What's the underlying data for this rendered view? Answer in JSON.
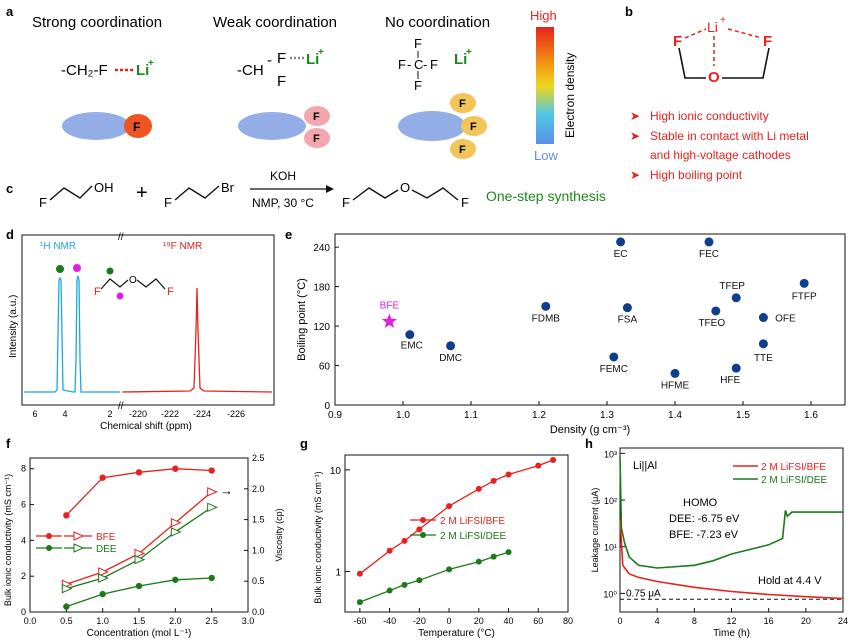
{
  "panel_letters": [
    "a",
    "b",
    "c",
    "d",
    "e",
    "f",
    "g",
    "h"
  ],
  "panel_a": {
    "headings": [
      "Strong coordination",
      "Weak coordination",
      "No coordination"
    ],
    "formula_strong": "-CH₂-F",
    "formula_weak_ch": "-CH",
    "atom_f": "F",
    "atom_c": "C",
    "li": "Li",
    "li_charge": "+",
    "bond_dash": "-",
    "colorbar_high": "High",
    "colorbar_low": "Low",
    "colorbar_label": "Electron density",
    "colors": {
      "strong_f": "#ee5522",
      "weak_f": "#f4a6ae",
      "no_f": "#f2c55a",
      "blob": "#93aee6",
      "red": "#e8211e",
      "green": "#1b8a1b"
    }
  },
  "panel_b": {
    "li": "Li",
    "li_charge": "+",
    "f": "F",
    "o": "O",
    "bullet": "➤",
    "bullets": [
      "High ionic conductivity",
      "Stable in contact with Li metal",
      "and high-voltage cathodes",
      "High boiling point"
    ]
  },
  "panel_c": {
    "f": "F",
    "oh": "OH",
    "br": "Br",
    "o": "O",
    "plus": "+",
    "reagent": "KOH",
    "conditions": "NMP, 30 °C",
    "note": "One-step synthesis"
  },
  "panel_d": {
    "h_nmr": "¹H NMR",
    "f_nmr": "¹⁹F NMR",
    "ylabel": "Intensity (a.u.)",
    "xlabel": "Chemical shift (ppm)",
    "xticks": [
      "6",
      "4",
      "2",
      "-220",
      "-222",
      "-224",
      "-226"
    ],
    "axis_break": "//",
    "f": "F",
    "o": "O",
    "colors": {
      "h": "#1aa7e6",
      "f": "#e8211e",
      "dot1": "#1a7a1a",
      "dot2": "#e020e0"
    }
  },
  "chart_data": [
    {
      "type": "scatter",
      "panel": "e",
      "xlabel": "Density (g cm⁻³)",
      "ylabel": "Boiling point (°C)",
      "xlim": [
        0.9,
        1.65
      ],
      "ylim": [
        0,
        260
      ],
      "xticks": [
        "0.9",
        "1.0",
        "1.1",
        "1.2",
        "1.3",
        "1.4",
        "1.5",
        "1.6"
      ],
      "yticks": [
        "0",
        "60",
        "120",
        "180",
        "240"
      ],
      "points": [
        {
          "label": "BFE",
          "x": 0.98,
          "y": 127,
          "marker": "star"
        },
        {
          "label": "EMC",
          "x": 1.01,
          "y": 107
        },
        {
          "label": "DMC",
          "x": 1.07,
          "y": 90
        },
        {
          "label": "FDMB",
          "x": 1.21,
          "y": 150
        },
        {
          "label": "EC",
          "x": 1.32,
          "y": 248
        },
        {
          "label": "FSA",
          "x": 1.33,
          "y": 148
        },
        {
          "label": "FEMC",
          "x": 1.31,
          "y": 73
        },
        {
          "label": "HFME",
          "x": 1.4,
          "y": 48
        },
        {
          "label": "FEC",
          "x": 1.45,
          "y": 248
        },
        {
          "label": "TFEO",
          "x": 1.46,
          "y": 143
        },
        {
          "label": "TFEP",
          "x": 1.49,
          "y": 163
        },
        {
          "label": "HFE",
          "x": 1.49,
          "y": 56
        },
        {
          "label": "OFE",
          "x": 1.53,
          "y": 133
        },
        {
          "label": "TTE",
          "x": 1.53,
          "y": 93
        },
        {
          "label": "FTFP",
          "x": 1.59,
          "y": 185
        }
      ]
    },
    {
      "type": "line",
      "panel": "f",
      "xlabel": "Concentration (mol L⁻¹)",
      "ylabel": "Bulk ionic conductivity (mS cm⁻¹)",
      "y2label": "Viscosity (cp)",
      "xlim": [
        0,
        3
      ],
      "ylim": [
        0,
        8.6
      ],
      "y2lim": [
        0,
        2.5
      ],
      "xticks": [
        "0.0",
        "0.5",
        "1.0",
        "1.5",
        "2.0",
        "2.5",
        "3.0"
      ],
      "yticks": [
        "0",
        "2",
        "4",
        "6",
        "8"
      ],
      "y2ticks": [
        "0.0",
        "0.5",
        "1.0",
        "1.5",
        "2.0",
        "2.5"
      ],
      "x": [
        0.5,
        1.0,
        1.5,
        2.0,
        2.5
      ],
      "series": [
        {
          "name": "BFE",
          "axis": "left",
          "values": [
            5.4,
            7.5,
            7.8,
            8.0,
            7.9
          ],
          "marker": "filled"
        },
        {
          "name": "DEE",
          "axis": "left",
          "values": [
            0.3,
            1.0,
            1.45,
            1.8,
            1.9
          ],
          "marker": "filled"
        },
        {
          "name": "BFE",
          "axis": "right",
          "values": [
            0.45,
            0.65,
            0.95,
            1.45,
            1.95
          ],
          "marker": "open"
        },
        {
          "name": "DEE",
          "axis": "right",
          "values": [
            0.38,
            0.55,
            0.85,
            1.3,
            1.7
          ],
          "marker": "open"
        }
      ],
      "legend": [
        "BFE",
        "DEE"
      ],
      "annotation": "→"
    },
    {
      "type": "line",
      "panel": "g",
      "xlabel": "Temperature (°C)",
      "ylabel": "Bulk ionic conductivity (mS cm⁻¹)",
      "yscale": "log",
      "xlim": [
        -70,
        80
      ],
      "ylim": [
        0.4,
        14
      ],
      "xticks": [
        "-60",
        "-40",
        "-20",
        "0",
        "20",
        "40",
        "60",
        "80"
      ],
      "yticks": [
        "1",
        "10"
      ],
      "series": [
        {
          "name": "2 M LiFSI/BFE",
          "x": [
            -60,
            -40,
            -30,
            -20,
            0,
            20,
            30,
            40,
            60,
            70
          ],
          "values": [
            0.95,
            1.6,
            2.0,
            2.6,
            4.4,
            6.5,
            7.8,
            9.0,
            11.0,
            12.5
          ]
        },
        {
          "name": "2 M LiFSI/DEE",
          "x": [
            -60,
            -40,
            -30,
            -20,
            0,
            20,
            30,
            40
          ],
          "values": [
            0.5,
            0.65,
            0.74,
            0.82,
            1.05,
            1.25,
            1.4,
            1.55
          ]
        }
      ]
    },
    {
      "type": "line",
      "panel": "h",
      "xlabel": "Time (h)",
      "ylabel": "Leakage current (μA)",
      "yscale": "log",
      "xlim": [
        0,
        24
      ],
      "ylim": [
        0.4,
        1300
      ],
      "xticks": [
        "0",
        "4",
        "8",
        "12",
        "16",
        "20",
        "24"
      ],
      "yticks": [
        "10⁰",
        "10¹",
        "10²",
        "10³"
      ],
      "series": [
        {
          "name": "2 M LiFSI/BFE",
          "x": [
            0,
            0.3,
            1,
            2,
            4,
            8,
            12,
            16,
            20,
            24
          ],
          "values": [
            40,
            4,
            2.6,
            2.2,
            1.8,
            1.35,
            1.1,
            0.95,
            0.85,
            0.78
          ]
        },
        {
          "name": "2 M LiFSI/DEE",
          "x": [
            0,
            0.15,
            0.5,
            1,
            2,
            4,
            8,
            10,
            12,
            16,
            17.5,
            17.8,
            18,
            18.5,
            20,
            24
          ],
          "values": [
            900,
            25,
            12,
            6,
            4,
            3.5,
            4,
            5,
            7,
            11,
            15,
            60,
            45,
            55,
            55,
            55
          ]
        }
      ],
      "reference_line": {
        "value": 0.75,
        "label": "0.75 μA"
      },
      "annotations": [
        "Li||Al",
        "HOMO",
        "DEE: -6.75 eV",
        "BFE: -7.23 eV",
        "Hold at 4.4 V"
      ]
    }
  ]
}
